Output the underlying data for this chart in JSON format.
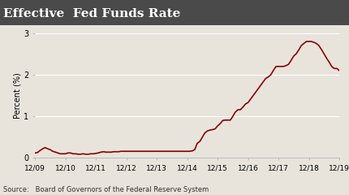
{
  "title": "Effective  Fed Funds Rate",
  "ylabel": "Percent (%)",
  "source_text": "Source:   Board of Governors of the Federal Reserve System",
  "title_bg_color": "#4a4a4a",
  "title_text_color": "#ffffff",
  "line_color": "#8b0000",
  "plot_bg_color": "#e8e4dc",
  "grid_color": "#ffffff",
  "source_text_color": "#333333",
  "ylim": [
    0,
    3.0
  ],
  "yticks": [
    0,
    1,
    2,
    3
  ],
  "x_labels": [
    "12/09",
    "12/10",
    "12/11",
    "12/12",
    "12/13",
    "12/14",
    "12/15",
    "12/16",
    "12/17",
    "12/18",
    "12/19"
  ],
  "x_values": [
    0,
    1,
    2,
    3,
    4,
    5,
    6,
    7,
    8,
    9,
    10
  ],
  "data_x": [
    0.0,
    0.08,
    0.17,
    0.25,
    0.33,
    0.42,
    0.5,
    0.58,
    0.67,
    0.75,
    0.83,
    0.92,
    1.0,
    1.08,
    1.17,
    1.25,
    1.33,
    1.42,
    1.5,
    1.58,
    1.67,
    1.75,
    1.83,
    1.92,
    2.0,
    2.08,
    2.17,
    2.25,
    2.33,
    2.42,
    2.5,
    2.58,
    2.67,
    2.75,
    2.83,
    2.92,
    3.0,
    3.08,
    3.17,
    3.25,
    3.33,
    3.42,
    3.5,
    3.58,
    3.67,
    3.75,
    3.83,
    3.92,
    4.0,
    4.08,
    4.17,
    4.25,
    4.33,
    4.42,
    4.5,
    4.58,
    4.67,
    4.75,
    4.83,
    4.92,
    5.0,
    5.08,
    5.17,
    5.25,
    5.33,
    5.42,
    5.5,
    5.58,
    5.67,
    5.75,
    5.83,
    5.92,
    6.0,
    6.08,
    6.17,
    6.25,
    6.33,
    6.42,
    6.5,
    6.58,
    6.67,
    6.75,
    6.83,
    6.92,
    7.0,
    7.08,
    7.17,
    7.25,
    7.33,
    7.42,
    7.5,
    7.58,
    7.67,
    7.75,
    7.83,
    7.92,
    8.0,
    8.08,
    8.17,
    8.25,
    8.33,
    8.42,
    8.5,
    8.58,
    8.67,
    8.75,
    8.83,
    8.92,
    9.0,
    9.08,
    9.17,
    9.25,
    9.33,
    9.42,
    9.5,
    9.58,
    9.67,
    9.75,
    9.83,
    9.92,
    10.0
  ],
  "data_y": [
    0.12,
    0.13,
    0.18,
    0.22,
    0.25,
    0.22,
    0.2,
    0.16,
    0.14,
    0.12,
    0.1,
    0.1,
    0.1,
    0.12,
    0.12,
    0.1,
    0.1,
    0.09,
    0.09,
    0.1,
    0.09,
    0.09,
    0.1,
    0.1,
    0.11,
    0.12,
    0.14,
    0.15,
    0.14,
    0.14,
    0.14,
    0.15,
    0.15,
    0.15,
    0.16,
    0.16,
    0.16,
    0.16,
    0.16,
    0.16,
    0.16,
    0.16,
    0.16,
    0.16,
    0.16,
    0.16,
    0.16,
    0.16,
    0.16,
    0.16,
    0.16,
    0.16,
    0.16,
    0.16,
    0.16,
    0.16,
    0.16,
    0.16,
    0.16,
    0.16,
    0.16,
    0.16,
    0.17,
    0.2,
    0.35,
    0.4,
    0.5,
    0.6,
    0.65,
    0.67,
    0.68,
    0.7,
    0.77,
    0.82,
    0.9,
    0.91,
    0.91,
    0.91,
    1.0,
    1.1,
    1.16,
    1.16,
    1.22,
    1.3,
    1.33,
    1.41,
    1.5,
    1.58,
    1.66,
    1.75,
    1.83,
    1.91,
    1.95,
    2.0,
    2.1,
    2.2,
    2.2,
    2.2,
    2.2,
    2.22,
    2.25,
    2.35,
    2.45,
    2.5,
    2.6,
    2.7,
    2.75,
    2.8,
    2.8,
    2.8,
    2.78,
    2.75,
    2.7,
    2.6,
    2.5,
    2.4,
    2.3,
    2.2,
    2.15,
    2.15,
    2.1
  ]
}
